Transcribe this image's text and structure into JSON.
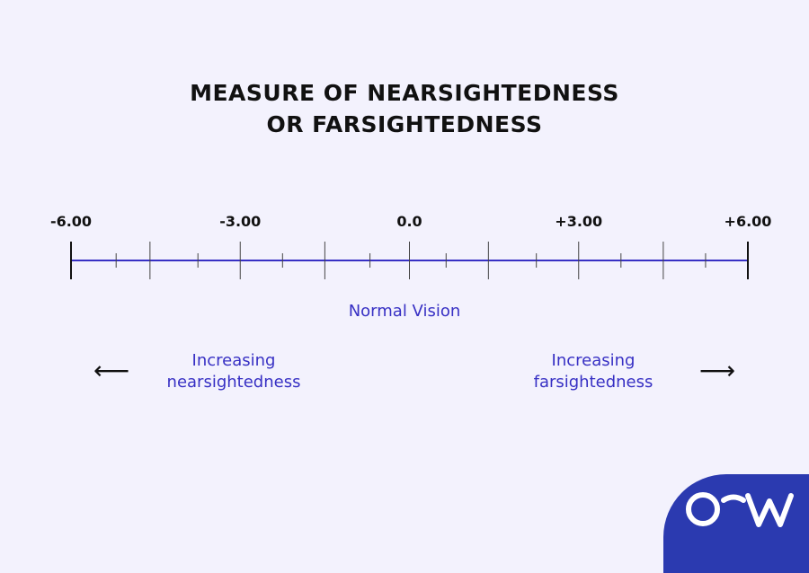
{
  "title": {
    "line1": "MEASURE OF NEARSIGHTEDNESS",
    "line2": "OR FARSIGHTEDNESS"
  },
  "scale": {
    "min": -6,
    "max": 6,
    "labels": [
      {
        "value": -6,
        "text": "-6.00"
      },
      {
        "value": -3,
        "text": "-3.00"
      },
      {
        "value": 0,
        "text": "0.0"
      },
      {
        "value": 3,
        "text": "+3.00"
      },
      {
        "value": 6,
        "text": "+6.00"
      }
    ],
    "major_ticks": [
      -6,
      -4.6,
      -3,
      -1.5,
      0,
      1.4,
      3,
      4.5,
      6
    ],
    "minor_ticks": [
      -5.2,
      -3.75,
      -2.25,
      -0.7,
      0.65,
      2.25,
      3.75,
      5.25
    ]
  },
  "normal_label": "Normal Vision",
  "left_caption": {
    "line1": "Increasing",
    "line2": "nearsightedness",
    "arrow": "⟵"
  },
  "right_caption": {
    "line1": "Increasing",
    "line2": "farsightedness",
    "arrow": "⟶"
  },
  "colors": {
    "accent": "#3730c4",
    "logo_bg": "#2b3ab0",
    "text": "#111111",
    "background": "#f3f2fd"
  },
  "logo": {
    "icon": "o-w-logo-icon"
  }
}
